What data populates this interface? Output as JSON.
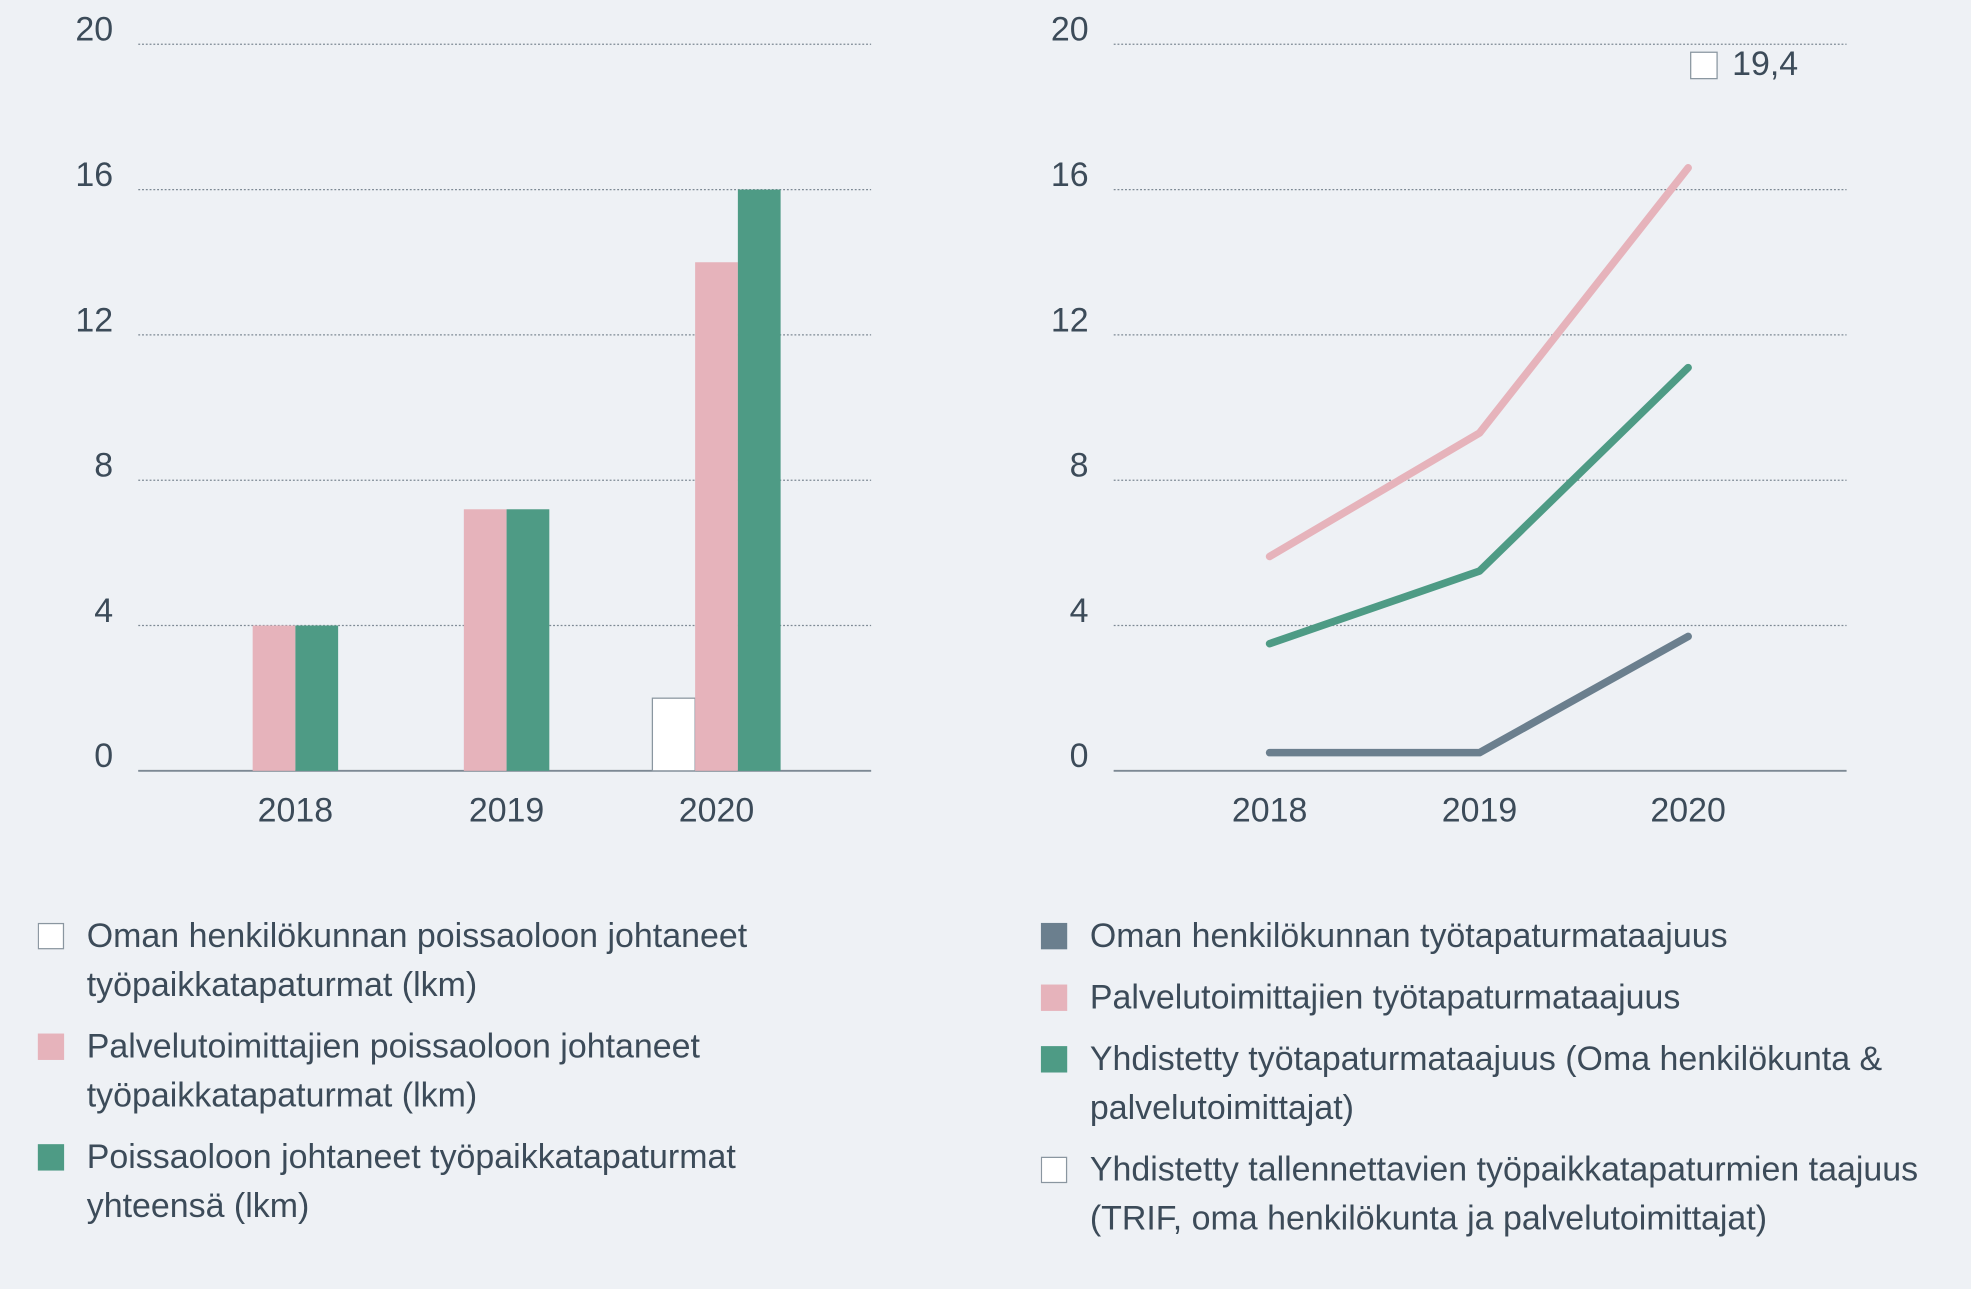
{
  "chart_data": [
    {
      "type": "bar",
      "categories": [
        "2018",
        "2019",
        "2020"
      ],
      "series": [
        {
          "name": "Oman henkilökunnan poissaoloon johtaneet työpaikkatapaturmat (lkm)",
          "color": "#ffffff",
          "values": [
            null,
            null,
            2
          ]
        },
        {
          "name": "Palvelutoimittajien poissaoloon johtaneet työpaikkatapaturmat (lkm)",
          "color": "#e6b3bb",
          "values": [
            4,
            7.2,
            14
          ]
        },
        {
          "name": "Poissaoloon johtaneet työpaikkatapaturmat yhteensä (lkm)",
          "color": "#4e9b85",
          "values": [
            4,
            7.2,
            16
          ]
        }
      ],
      "ylim": [
        0,
        20
      ],
      "yticks": [
        0,
        4,
        8,
        12,
        16,
        20
      ],
      "grid": true
    },
    {
      "type": "line",
      "categories": [
        "2018",
        "2019",
        "2020"
      ],
      "series": [
        {
          "name": "Oman henkilökunnan työtapaturmataajuus",
          "color": "#6b7f8e",
          "values": [
            0.5,
            0.5,
            3.7
          ]
        },
        {
          "name": "Palvelutoimittajien työtapaturmataajuus",
          "color": "#e6b3bb",
          "values": [
            5.9,
            9.3,
            16.6
          ]
        },
        {
          "name": "Yhdistetty työtapaturmataajuus (Oma henkilökunta & palvelutoimittajat)",
          "color": "#4e9b85",
          "values": [
            3.5,
            5.5,
            11.1
          ]
        },
        {
          "name": "Yhdistetty tallennettavien työpaikkatapaturmien taajuus (TRIF, oma henkilökunta ja palvelutoimittajat)",
          "color": "#ffffff",
          "values": [
            null,
            null,
            19.4
          ],
          "value_labels": [
            null,
            null,
            "19,4"
          ]
        }
      ],
      "ylim": [
        0,
        20
      ],
      "yticks": [
        0,
        4,
        8,
        12,
        16,
        20
      ],
      "grid": true
    }
  ]
}
